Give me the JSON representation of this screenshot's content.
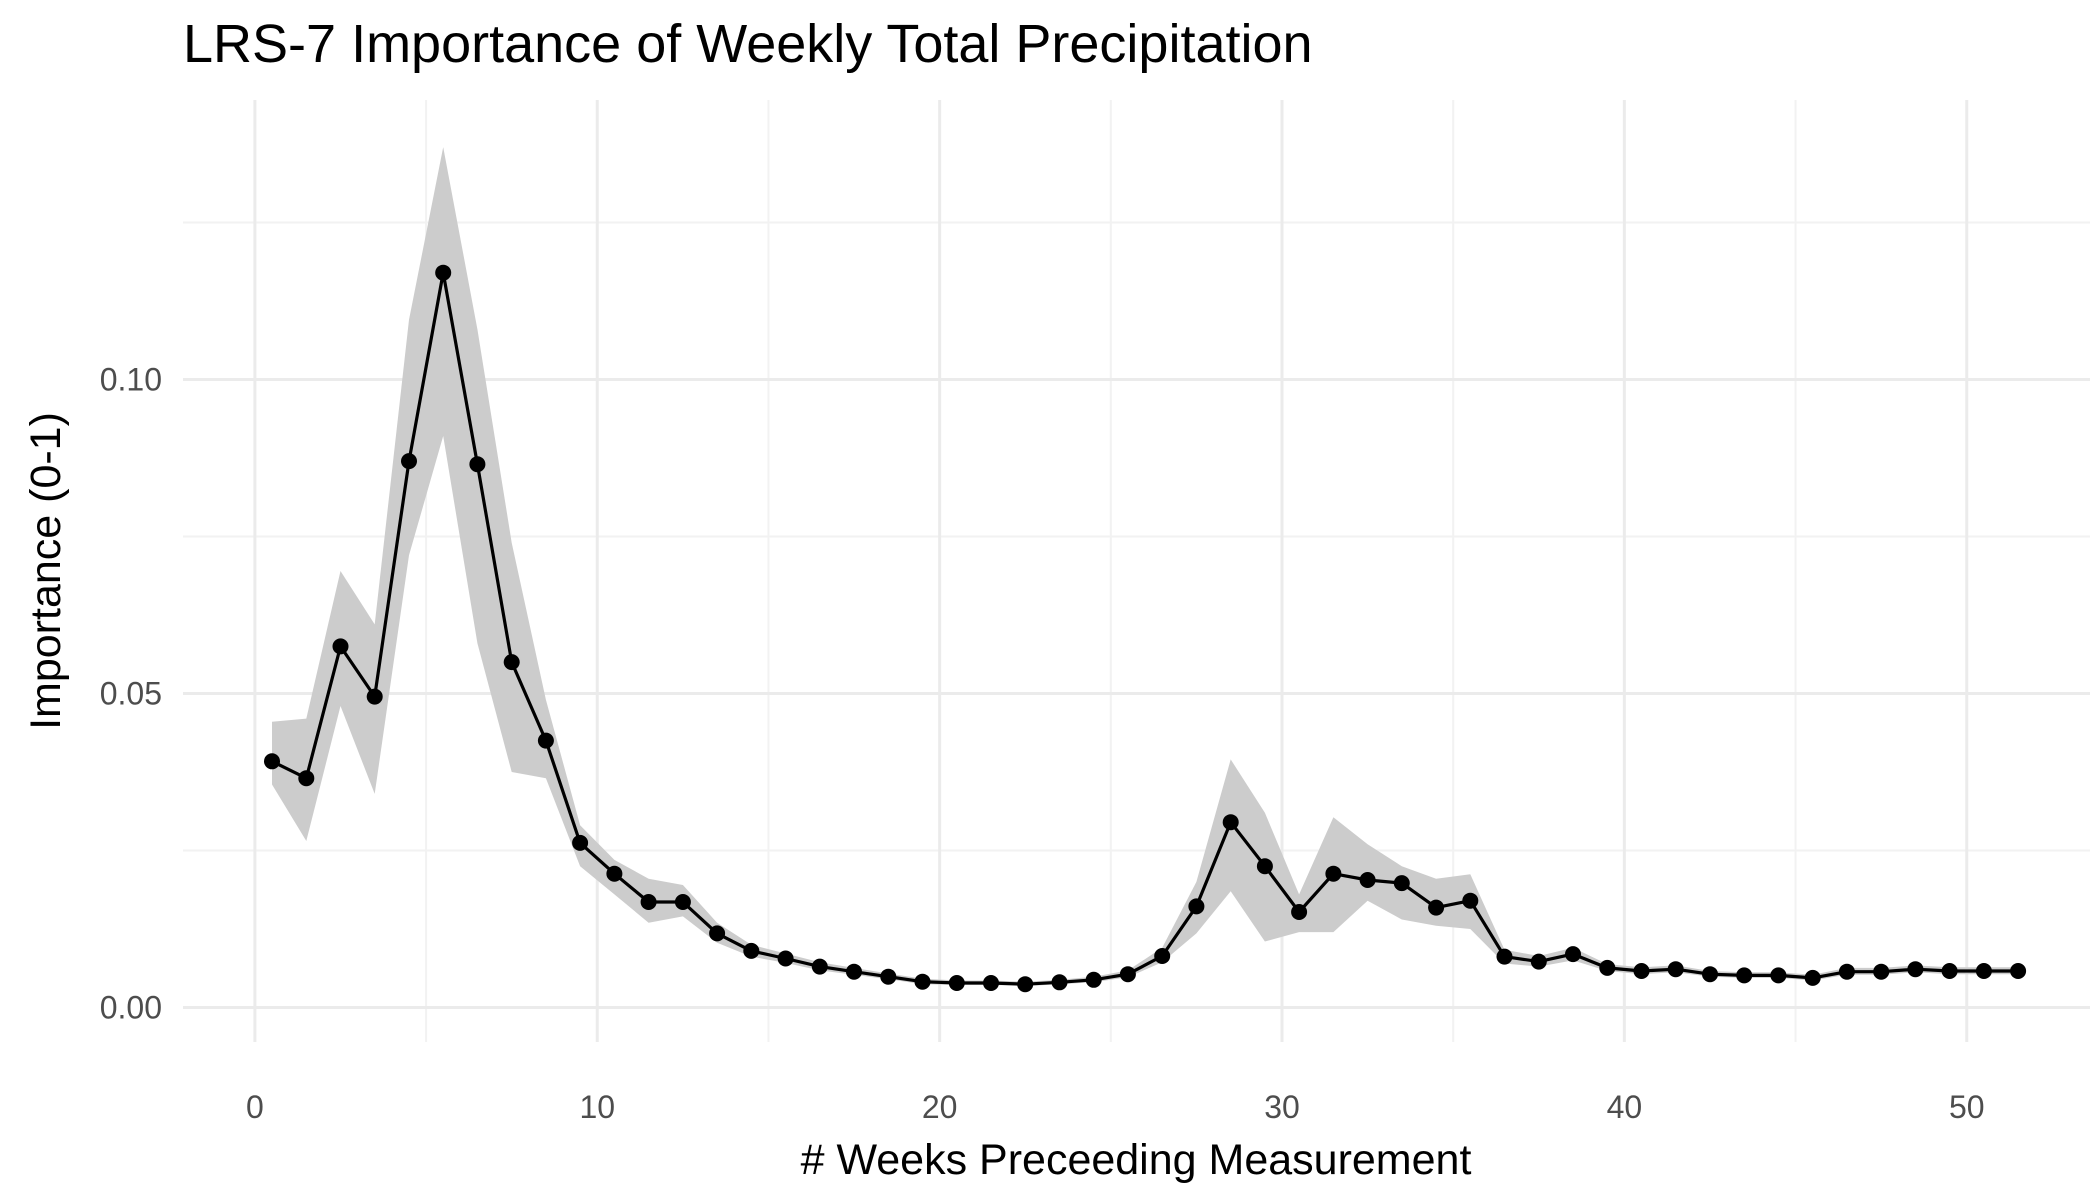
{
  "chart_data": {
    "type": "line",
    "title": "LRS-7 Importance of Weekly Total Precipitation",
    "xlabel": "# Weeks Preceeding Measurement",
    "ylabel": "Importance (0-1)",
    "xlim": [
      -2.1,
      53.6
    ],
    "ylim": [
      -0.0055,
      0.1445
    ],
    "x_ticks": [
      0,
      10,
      20,
      30,
      40,
      50
    ],
    "x_tick_labels": [
      "0",
      "10",
      "20",
      "30",
      "40",
      "50"
    ],
    "y_ticks": [
      0,
      0.05,
      0.1
    ],
    "y_tick_labels": [
      "0.00",
      "0.05",
      "0.10"
    ],
    "grid": true,
    "series": [
      {
        "x": [
          0.5,
          1.5,
          2.5,
          3.5,
          4.5,
          5.5,
          6.5,
          7.5,
          8.5,
          9.5,
          10.5,
          11.5,
          12.5,
          13.5,
          14.5,
          15.5,
          16.5,
          17.5,
          18.5,
          19.5,
          20.5,
          21.5,
          22.5,
          23.5,
          24.5,
          25.5,
          26.5,
          27.5,
          28.5,
          29.5,
          30.5,
          31.5,
          32.5,
          33.5,
          34.5,
          35.5,
          36.5,
          37.5,
          38.5,
          39.5,
          40.5,
          41.5,
          42.5,
          43.5,
          44.5,
          45.5,
          46.5,
          47.5,
          48.5,
          49.5,
          50.5,
          51.5
        ],
        "y": [
          0.0392,
          0.0365,
          0.0575,
          0.0495,
          0.087,
          0.117,
          0.0865,
          0.055,
          0.0425,
          0.0262,
          0.0213,
          0.0168,
          0.0168,
          0.0118,
          0.009,
          0.0078,
          0.0065,
          0.0057,
          0.0049,
          0.0041,
          0.0039,
          0.0039,
          0.0037,
          0.004,
          0.0044,
          0.0053,
          0.0082,
          0.0161,
          0.0295,
          0.0225,
          0.0152,
          0.0213,
          0.0203,
          0.0198,
          0.0159,
          0.017,
          0.0081,
          0.0073,
          0.0085,
          0.0063,
          0.0058,
          0.0061,
          0.0053,
          0.0051,
          0.0051,
          0.0047,
          0.0057,
          0.0057,
          0.0061,
          0.0058,
          0.0058,
          0.0058
        ],
        "y_lower": [
          0.0355,
          0.0265,
          0.048,
          0.034,
          0.072,
          0.091,
          0.058,
          0.0375,
          0.0365,
          0.0225,
          0.018,
          0.0135,
          0.0145,
          0.0103,
          0.0081,
          0.0071,
          0.0059,
          0.0052,
          0.0045,
          0.0037,
          0.0036,
          0.0036,
          0.0034,
          0.0037,
          0.004,
          0.0048,
          0.0072,
          0.0118,
          0.0185,
          0.0105,
          0.012,
          0.012,
          0.017,
          0.014,
          0.013,
          0.0125,
          0.007,
          0.0065,
          0.0075,
          0.0058,
          0.0053,
          0.0056,
          0.0049,
          0.0047,
          0.0047,
          0.0043,
          0.0052,
          0.0052,
          0.0056,
          0.0053,
          0.0053,
          0.0053
        ],
        "y_upper": [
          0.0455,
          0.046,
          0.0695,
          0.061,
          0.1095,
          0.137,
          0.108,
          0.074,
          0.049,
          0.029,
          0.0235,
          0.0205,
          0.0195,
          0.0135,
          0.01,
          0.0086,
          0.0072,
          0.0063,
          0.0054,
          0.0046,
          0.0043,
          0.0043,
          0.0041,
          0.0044,
          0.0049,
          0.0059,
          0.0095,
          0.02,
          0.0395,
          0.031,
          0.018,
          0.0303,
          0.026,
          0.0225,
          0.0205,
          0.0212,
          0.0092,
          0.0082,
          0.0095,
          0.0069,
          0.0064,
          0.0067,
          0.0058,
          0.0056,
          0.0056,
          0.0052,
          0.0063,
          0.0063,
          0.0067,
          0.0064,
          0.0064,
          0.0064
        ]
      }
    ],
    "colors": {
      "line": "#000000",
      "ribbon": "#cccccc",
      "grid_major": "#ebebeb",
      "grid_minor": "#f2f2f2",
      "tick_text": "#4d4d4d",
      "background": "#ffffff"
    }
  }
}
